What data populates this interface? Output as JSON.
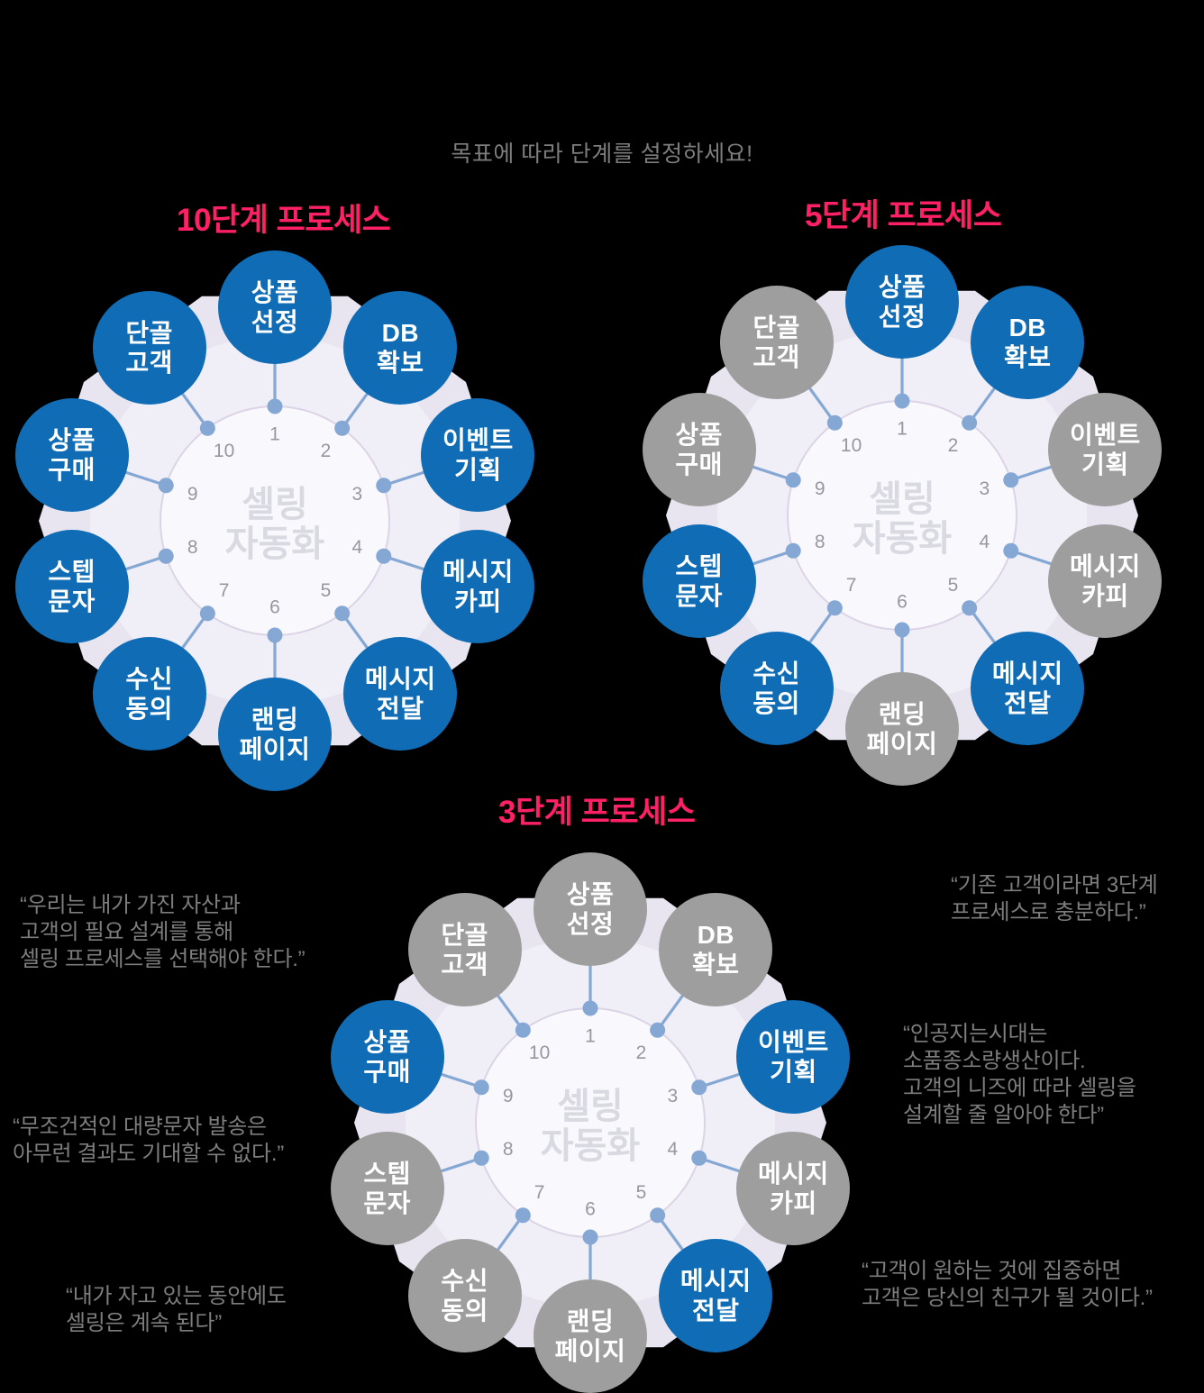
{
  "page": {
    "subtitle": "목표에 따라 단계를 설정하세요!"
  },
  "colors": {
    "background": "#000000",
    "title_pink": "#ff2065",
    "active_blue": "#0f6cb5",
    "inactive_gray": "#9e9e9e",
    "quote_gray": "#7d7d7d",
    "wheel_lavender": "#e8e4f0",
    "wheel_mid": "#f0eef6",
    "wheel_inner": "#f9f8fc",
    "connector_blue": "#84a7d4",
    "number_gray": "#97979f",
    "center_text_gray": "#d9d9e1"
  },
  "diagrams": [
    {
      "title": "10단계 프로세스",
      "center_label": "셀링\n자동화",
      "steps": [
        {
          "num": "1",
          "label": "상품\n선정",
          "state": "active"
        },
        {
          "num": "2",
          "label": "DB\n확보",
          "state": "active"
        },
        {
          "num": "3",
          "label": "이벤트\n기획",
          "state": "active"
        },
        {
          "num": "4",
          "label": "메시지\n카피",
          "state": "active"
        },
        {
          "num": "5",
          "label": "메시지\n전달",
          "state": "active"
        },
        {
          "num": "6",
          "label": "랜딩\n페이지",
          "state": "active"
        },
        {
          "num": "7",
          "label": "수신\n동의",
          "state": "active"
        },
        {
          "num": "8",
          "label": "스텝\n문자",
          "state": "active"
        },
        {
          "num": "9",
          "label": "상품\n구매",
          "state": "active"
        },
        {
          "num": "10",
          "label": "단골\n고객",
          "state": "active"
        }
      ]
    },
    {
      "title": "5단계 프로세스",
      "center_label": "셀링\n자동화",
      "steps": [
        {
          "num": "1",
          "label": "상품\n선정",
          "state": "active"
        },
        {
          "num": "2",
          "label": "DB\n확보",
          "state": "active"
        },
        {
          "num": "3",
          "label": "이벤트\n기획",
          "state": "inactive"
        },
        {
          "num": "4",
          "label": "메시지\n카피",
          "state": "inactive"
        },
        {
          "num": "5",
          "label": "메시지\n전달",
          "state": "active"
        },
        {
          "num": "6",
          "label": "랜딩\n페이지",
          "state": "inactive"
        },
        {
          "num": "7",
          "label": "수신\n동의",
          "state": "active"
        },
        {
          "num": "8",
          "label": "스텝\n문자",
          "state": "active"
        },
        {
          "num": "9",
          "label": "상품\n구매",
          "state": "inactive"
        },
        {
          "num": "10",
          "label": "단골\n고객",
          "state": "inactive"
        }
      ]
    },
    {
      "title": "3단계 프로세스",
      "center_label": "셀링\n자동화",
      "steps": [
        {
          "num": "1",
          "label": "상품\n선정",
          "state": "inactive"
        },
        {
          "num": "2",
          "label": "DB\n확보",
          "state": "inactive"
        },
        {
          "num": "3",
          "label": "이벤트\n기획",
          "state": "active"
        },
        {
          "num": "4",
          "label": "메시지\n카피",
          "state": "inactive"
        },
        {
          "num": "5",
          "label": "메시지\n전달",
          "state": "active"
        },
        {
          "num": "6",
          "label": "랜딩\n페이지",
          "state": "inactive"
        },
        {
          "num": "7",
          "label": "수신\n동의",
          "state": "inactive"
        },
        {
          "num": "8",
          "label": "스텝\n문자",
          "state": "inactive"
        },
        {
          "num": "9",
          "label": "상품\n구매",
          "state": "active"
        },
        {
          "num": "10",
          "label": "단골\n고객",
          "state": "inactive"
        }
      ]
    }
  ],
  "quotes": {
    "left_top": {
      "text": "“우리는 내가 가진 자산과\n고객의 필요 설계를 통해\n셀링 프로세스를 선택해야 한다.”"
    },
    "left_middle": {
      "text": "“무조건적인 대량문자 발송은\n아무런 결과도 기대할 수 없다.”"
    },
    "left_bottom": {
      "text": "“내가 자고 있는 동안에도\n셀링은 계속 된다”"
    },
    "right_top": {
      "text": "“기존 고객이라면 3단계\n프로세스로 충분하다.”"
    },
    "right_middle": {
      "text": "“인공지는시대는\n소품종소량생산이다.\n고객의 니즈에 따라 셀링을\n설계할 줄 알아야 한다”"
    },
    "right_bottom": {
      "text": "“고객이 원하는 것에 집중하면\n고객은 당신의 친구가 될 것이다.”"
    }
  }
}
